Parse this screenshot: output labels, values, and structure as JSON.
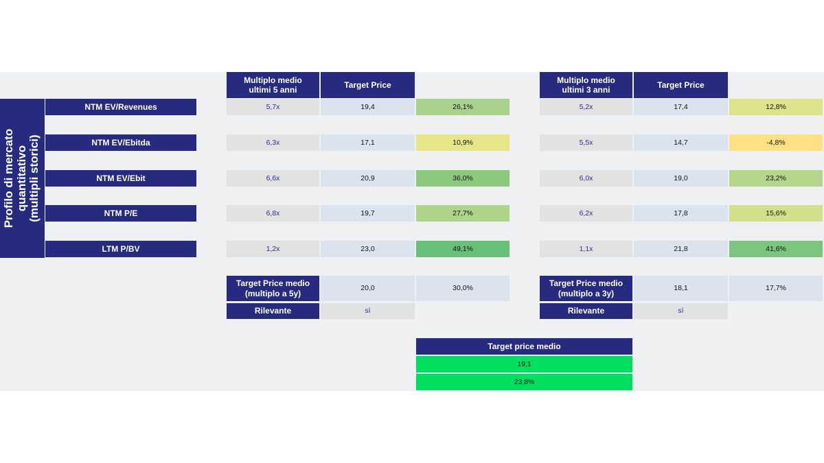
{
  "side_label": "Profilo di mercato\nquantitativo\n(multipli storici)",
  "col_headers": {
    "mult5": "Multiplo medio\nultimi 5 anni",
    "tp5": "Target Price",
    "mult3": "Multiplo medio\nultimi 3 anni",
    "tp3": "Target Price"
  },
  "rows": [
    {
      "label": "NTM EV/Revenues",
      "m5": "5,7x",
      "tp5": "19,4",
      "p5": "26,1%",
      "c5": "#a9d18e",
      "m3": "5,2x",
      "tp3": "17,4",
      "p3": "12,8%",
      "c3": "#dde38a"
    },
    {
      "label": "NTM EV/Ebitda",
      "m5": "6,3x",
      "tp5": "17,1",
      "p5": "10,9%",
      "c5": "#e6e58a",
      "m3": "5,5x",
      "tp3": "14,7",
      "p3": "-4,8%",
      "c3": "#ffe083"
    },
    {
      "label": "NTM EV/Ebit",
      "m5": "6,6x",
      "tp5": "20,9",
      "p5": "36,0%",
      "c5": "#8cc97e",
      "m3": "6,0x",
      "tp3": "19,0",
      "p3": "23,2%",
      "c3": "#b3d68a"
    },
    {
      "label": "NTM P/E",
      "m5": "6,8x",
      "tp5": "19,7",
      "p5": "27,7%",
      "c5": "#aed38b",
      "m3": "6,2x",
      "tp3": "17,8",
      "p3": "15,6%",
      "c3": "#d2e08a"
    },
    {
      "label": "LTM P/BV",
      "m5": "1,2x",
      "tp5": "23,0",
      "p5": "49,1%",
      "c5": "#68bf78",
      "m3": "1,1x",
      "tp3": "21,8",
      "p3": "41,6%",
      "c3": "#7cc57c"
    }
  ],
  "summary5": {
    "label": "Target Price medio\n(multiplo a 5y)",
    "tp": "20,0",
    "pct": "30,0%",
    "rel_label": "Rilevante",
    "rel_val": "sì"
  },
  "summary3": {
    "label": "Target Price medio\n(multiplo a 3y)",
    "tp": "18,1",
    "pct": "17,7%",
    "rel_label": "Rilevante",
    "rel_val": "sì"
  },
  "final": {
    "label": "Target price medio",
    "tp": "19,1",
    "pct": "23,8%",
    "color": "#00e060"
  }
}
